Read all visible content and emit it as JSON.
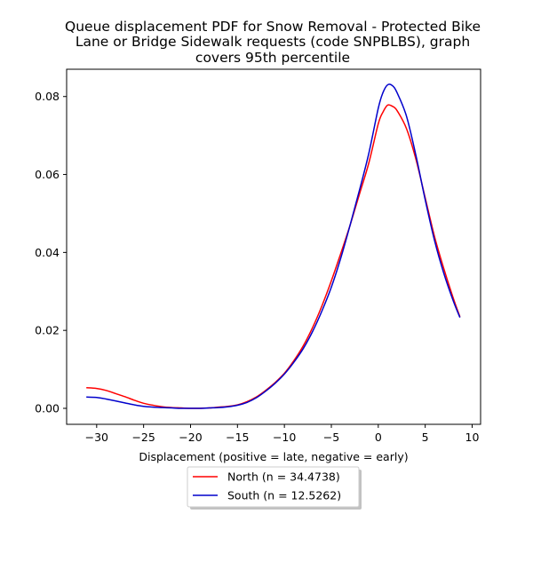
{
  "chart_data": {
    "type": "line",
    "title_lines": [
      "Queue displacement PDF for Snow Removal - Protected Bike",
      "Lane or Bridge Sidewalk  requests (code SNPBLBS), graph",
      "covers 95th percentile"
    ],
    "xlabel": "Displacement (positive = late, negative = early)",
    "ylabel": "",
    "xlim": [
      -33.2,
      10.9
    ],
    "ylim": [
      -0.0041,
      0.087
    ],
    "xticks": [
      -30,
      -25,
      -20,
      -15,
      -10,
      -5,
      0,
      5,
      10
    ],
    "yticks": [
      0.0,
      0.02,
      0.04,
      0.06,
      0.08
    ],
    "xtick_labels": [
      "−30",
      "−25",
      "−20",
      "−15",
      "−10",
      "−5",
      "0",
      "5",
      "10"
    ],
    "ytick_labels": [
      "0.00",
      "0.02",
      "0.04",
      "0.06",
      "0.08"
    ],
    "grid": false,
    "legend_position": "below-center",
    "series": [
      {
        "name": "North (n = 34.4738)",
        "color": "#ff0000",
        "x": [
          -31.1,
          -30,
          -29,
          -28,
          -27,
          -26,
          -25,
          -24,
          -23,
          -22,
          -21,
          -20,
          -19,
          -18,
          -17,
          -16,
          -15,
          -14,
          -13,
          -12,
          -11,
          -10,
          -9,
          -8,
          -7,
          -6,
          -5,
          -4,
          -3,
          -2,
          -1,
          0,
          0.5,
          1,
          1.5,
          2,
          3,
          4,
          5,
          6,
          7,
          8,
          8.7
        ],
        "y": [
          0.0053,
          0.0051,
          0.0046,
          0.0038,
          0.003,
          0.0021,
          0.0013,
          0.0008,
          0.0004,
          0.0002,
          0.0001,
          0.0,
          0.0,
          0.0001,
          0.0003,
          0.0005,
          0.0009,
          0.0017,
          0.0029,
          0.0046,
          0.0066,
          0.009,
          0.0122,
          0.016,
          0.0207,
          0.0263,
          0.0327,
          0.0397,
          0.047,
          0.055,
          0.063,
          0.073,
          0.076,
          0.0778,
          0.0775,
          0.0764,
          0.0718,
          0.064,
          0.054,
          0.044,
          0.0357,
          0.0282,
          0.0235
        ]
      },
      {
        "name": "South (n = 12.5262)",
        "color": "#0000cc",
        "x": [
          -31.1,
          -30,
          -29,
          -28,
          -27,
          -26,
          -25,
          -24,
          -23,
          -22,
          -21,
          -20,
          -19,
          -18,
          -17,
          -16,
          -15,
          -14,
          -13,
          -12,
          -11,
          -10,
          -9,
          -8,
          -7,
          -6,
          -5,
          -4,
          -3,
          -2,
          -1,
          0,
          0.5,
          1,
          1.5,
          2,
          3,
          4,
          5,
          6,
          7,
          8,
          8.7
        ],
        "y": [
          0.0029,
          0.0028,
          0.0024,
          0.0019,
          0.0014,
          0.0009,
          0.0005,
          0.0003,
          0.0002,
          0.0001,
          0.0,
          0.0,
          0.0,
          0.0001,
          0.0002,
          0.0004,
          0.0008,
          0.0015,
          0.0027,
          0.0044,
          0.0064,
          0.0088,
          0.0118,
          0.0153,
          0.0197,
          0.025,
          0.0311,
          0.0385,
          0.047,
          0.056,
          0.0655,
          0.077,
          0.081,
          0.083,
          0.0828,
          0.081,
          0.075,
          0.065,
          0.0535,
          0.043,
          0.0345,
          0.0275,
          0.0233
        ]
      }
    ]
  }
}
